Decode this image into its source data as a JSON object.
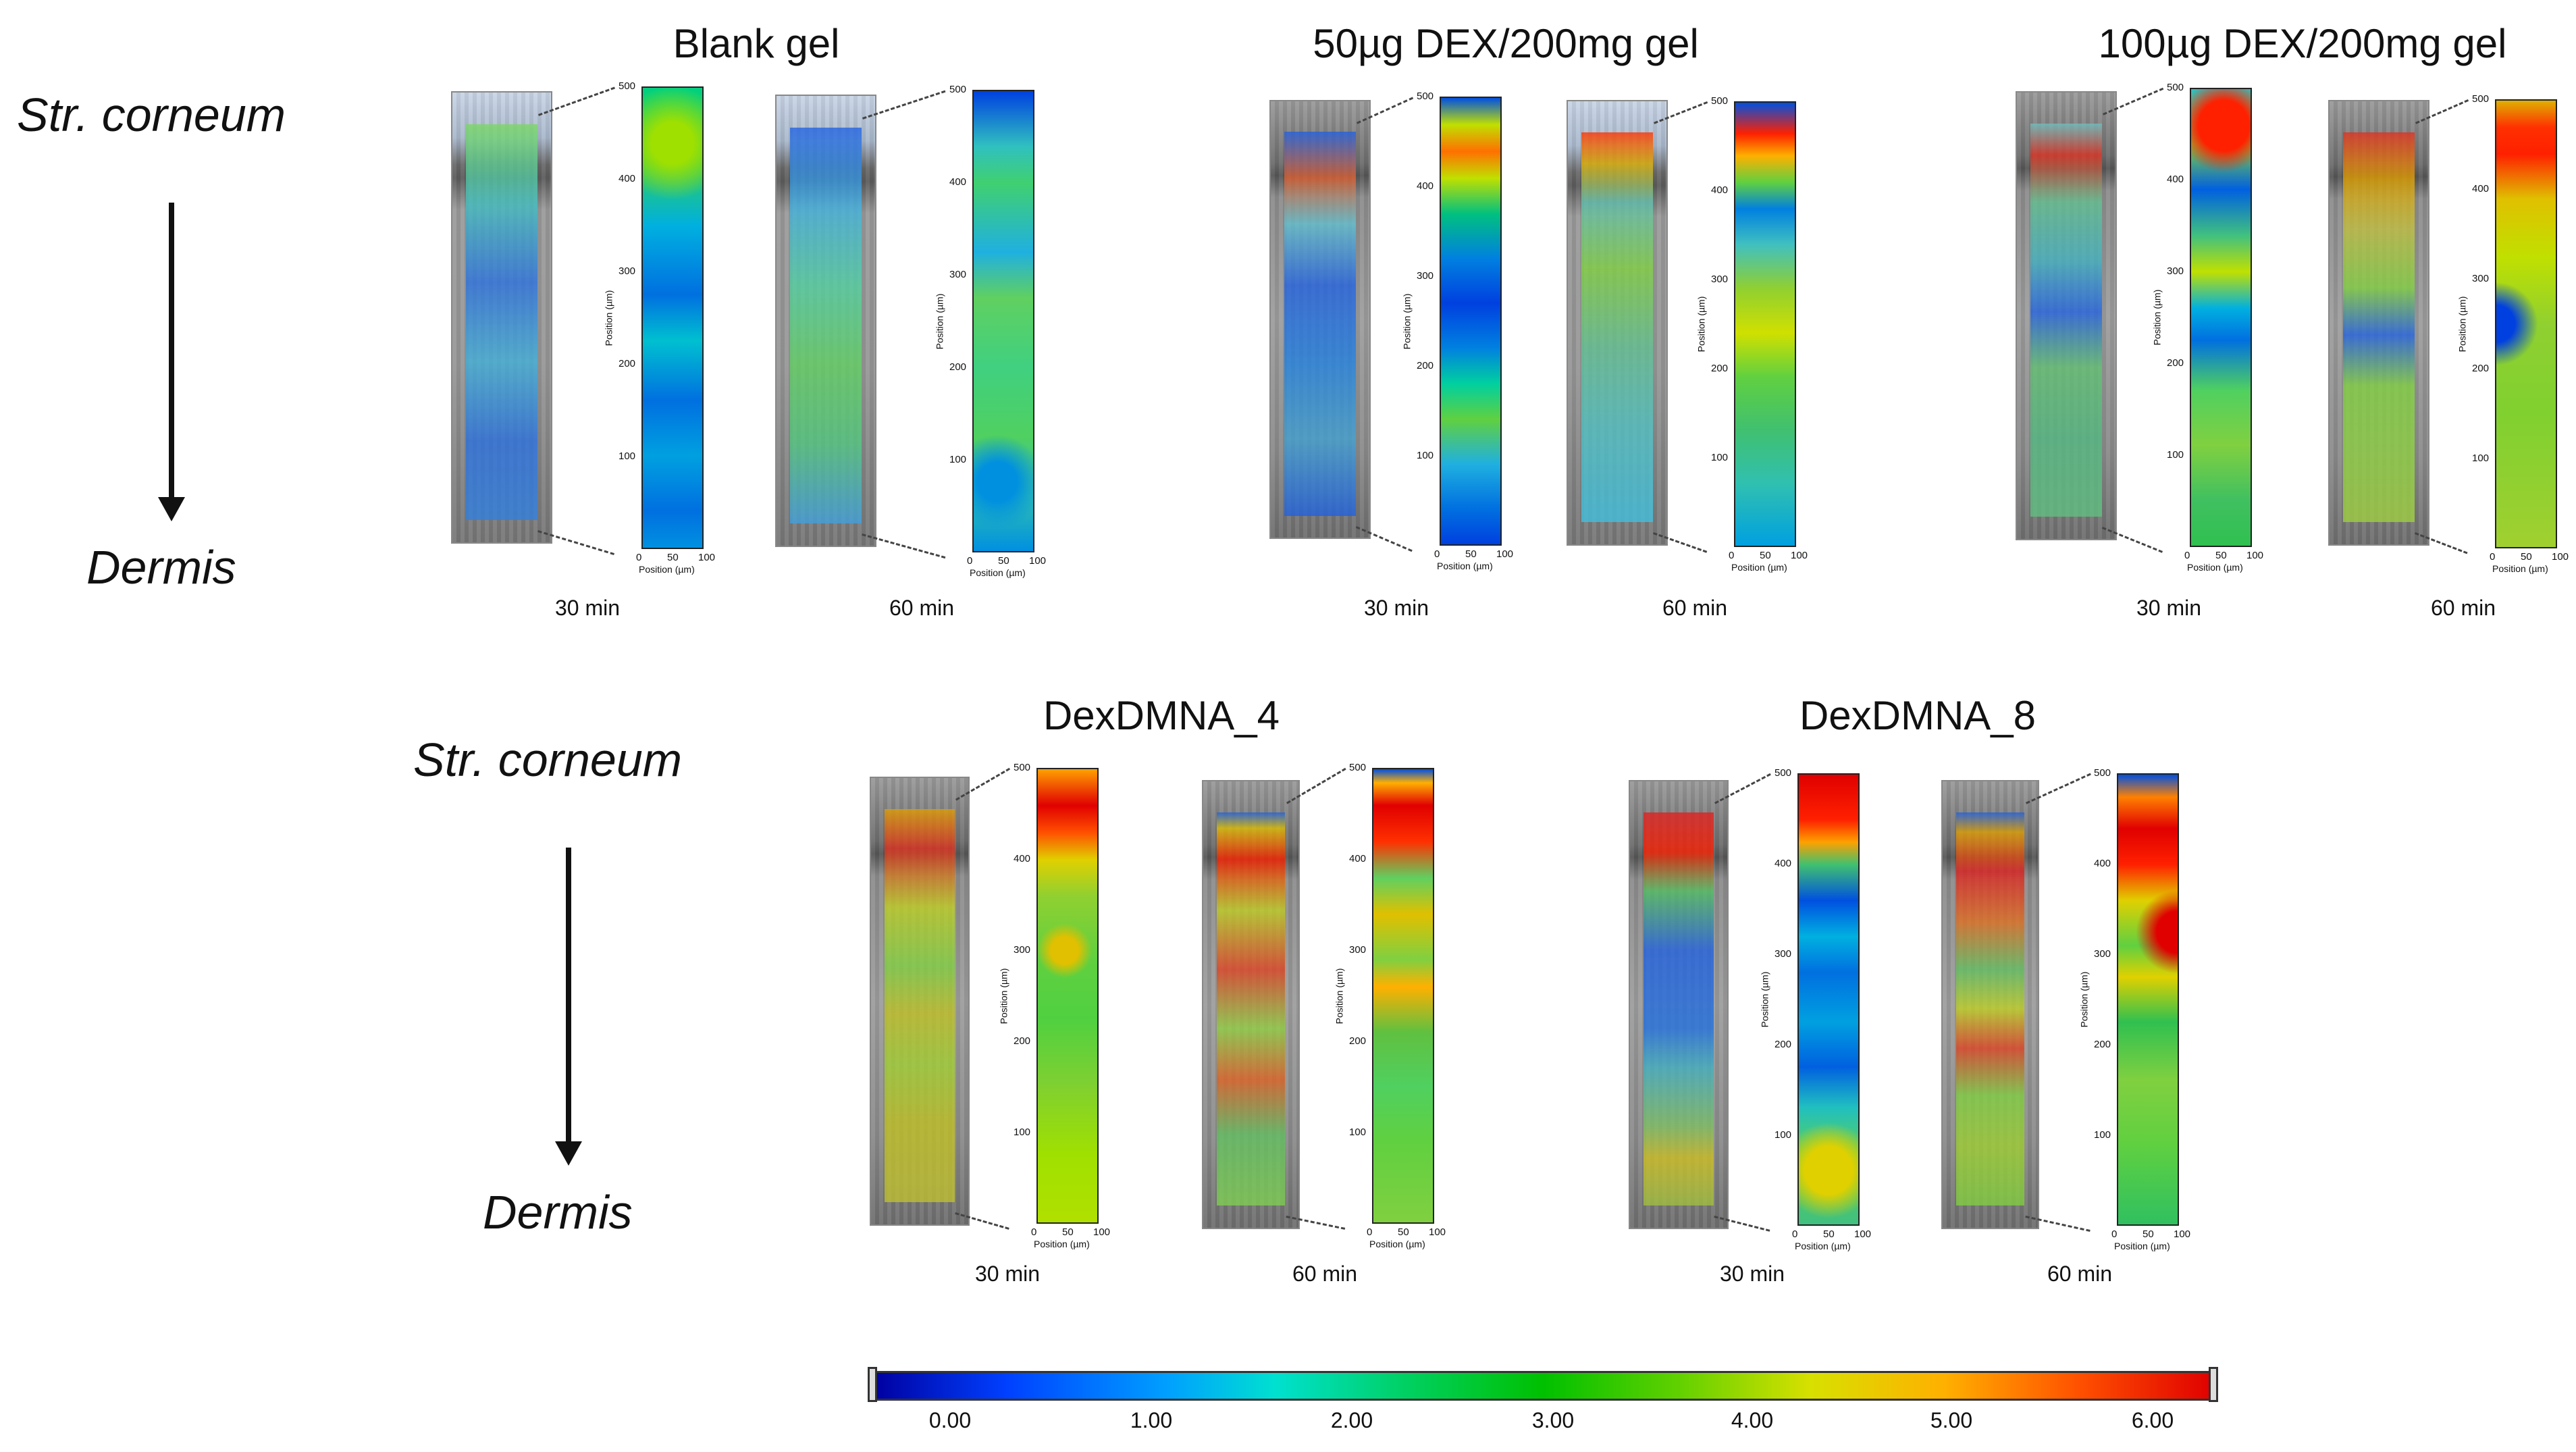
{
  "row1": {
    "side_top": "Str. corneum",
    "side_bottom": "Dermis",
    "groups": [
      {
        "title": "Blank gel",
        "times": [
          "30 min",
          "60 min"
        ]
      },
      {
        "title": "50µg DEX/200mg gel",
        "times": [
          "30 min",
          "60 min"
        ]
      },
      {
        "title": "100µg DEX/200mg gel",
        "times": [
          "30 min",
          "60 min"
        ]
      }
    ]
  },
  "row2": {
    "side_top": "Str. corneum",
    "side_bottom": "Dermis",
    "groups": [
      {
        "title": "DexDMNA_4",
        "times": [
          "30 min",
          "60 min"
        ]
      },
      {
        "title": "DexDMNA_8",
        "times": [
          "30 min",
          "60 min"
        ]
      }
    ]
  },
  "axes": {
    "y_title": "Position (µm)",
    "x_title": "Position (µm)",
    "y_ticks": [
      "100",
      "200",
      "300",
      "400",
      "500"
    ],
    "x_ticks": [
      "0",
      "50",
      "100"
    ]
  },
  "colorbar": {
    "ticks": [
      "0.00",
      "1.00",
      "2.00",
      "3.00",
      "4.00",
      "5.00",
      "6.00"
    ],
    "colors": [
      "#0000a0",
      "#00a0ff",
      "#00c000",
      "#d8e000",
      "#e00000"
    ]
  }
}
